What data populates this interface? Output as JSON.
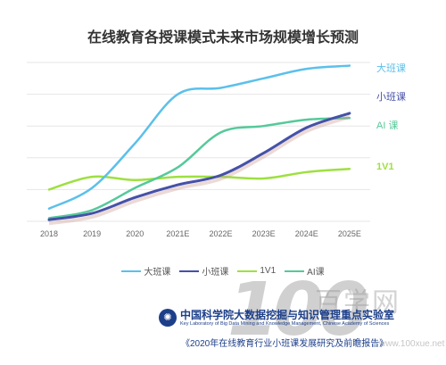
{
  "title": "在线教育各授课模式未来市场规模增长预测",
  "chart_data": {
    "type": "line",
    "title": "在线教育各授课模式未来市场规模增长预测",
    "categories": [
      "2018",
      "2019",
      "2020",
      "2021E",
      "2022E",
      "2023E",
      "2024E",
      "2025E"
    ],
    "ylim": [
      0,
      10
    ],
    "grid": true,
    "legend": "bottom",
    "series": [
      {
        "name": "大班课",
        "color": "#5bc0eb",
        "values": [
          0.8,
          2.1,
          4.9,
          8.0,
          8.4,
          9.0,
          9.6,
          9.8
        ]
      },
      {
        "name": "小班课",
        "color": "#4551a8",
        "values": [
          0.1,
          0.5,
          1.5,
          2.3,
          2.9,
          4.3,
          5.9,
          6.8
        ]
      },
      {
        "name": "1V1",
        "color": "#9ee040",
        "values": [
          2.0,
          2.8,
          2.6,
          2.8,
          2.8,
          2.7,
          3.1,
          3.3
        ]
      },
      {
        "name": "AI课",
        "color": "#55c99a",
        "values": [
          0.2,
          0.7,
          2.1,
          3.4,
          5.6,
          6.0,
          6.4,
          6.5
        ]
      }
    ],
    "end_labels": [
      "大班课",
      "小班课",
      "AI 课",
      "1V1"
    ]
  },
  "source": {
    "org_cn": "中国科学院大数据挖掘与知识管理重点实验室",
    "org_en": "Key Laboratory of Big Data Mining and Knowledge Management, Chinese Academy of Sciences",
    "report_title": "《2020年在线教育行业小班课发展研究及前瞻报告》"
  },
  "watermark": {
    "digits": "100",
    "cn": "百学网",
    "url": "www.100xue.net"
  }
}
